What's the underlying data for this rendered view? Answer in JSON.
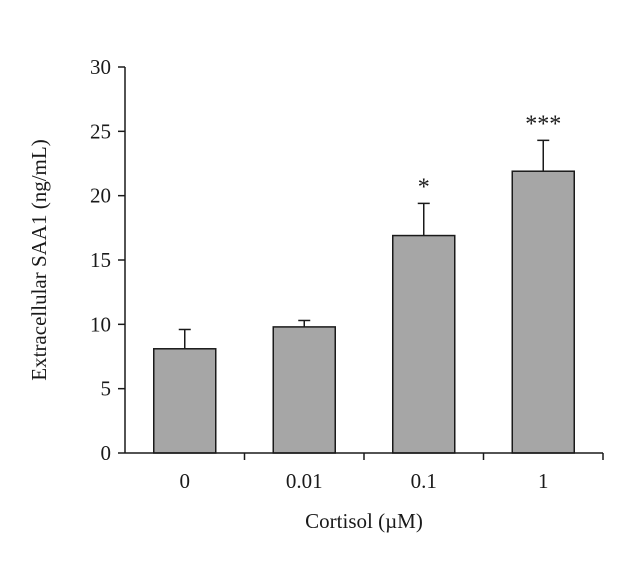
{
  "chart_data": {
    "type": "bar",
    "title": "",
    "xlabel": "Cortisol (µM)",
    "ylabel": "Extracellular SAA1  (ng/mL)",
    "categories": [
      "0",
      "0.01",
      "0.1",
      "1"
    ],
    "values": [
      8.1,
      9.8,
      16.9,
      21.9
    ],
    "error": [
      1.5,
      0.5,
      2.5,
      2.4
    ],
    "annotations": [
      "",
      "",
      "*",
      "***"
    ],
    "ylim": [
      0,
      30
    ],
    "yticks": [
      "0",
      "5",
      "10",
      "15",
      "20",
      "25",
      "30"
    ],
    "grid": false,
    "legend": "none",
    "colors": {
      "bar_fill": "#a6a6a6",
      "bar_stroke": "#1a1a1a",
      "axis": "#1a1a1a"
    }
  }
}
